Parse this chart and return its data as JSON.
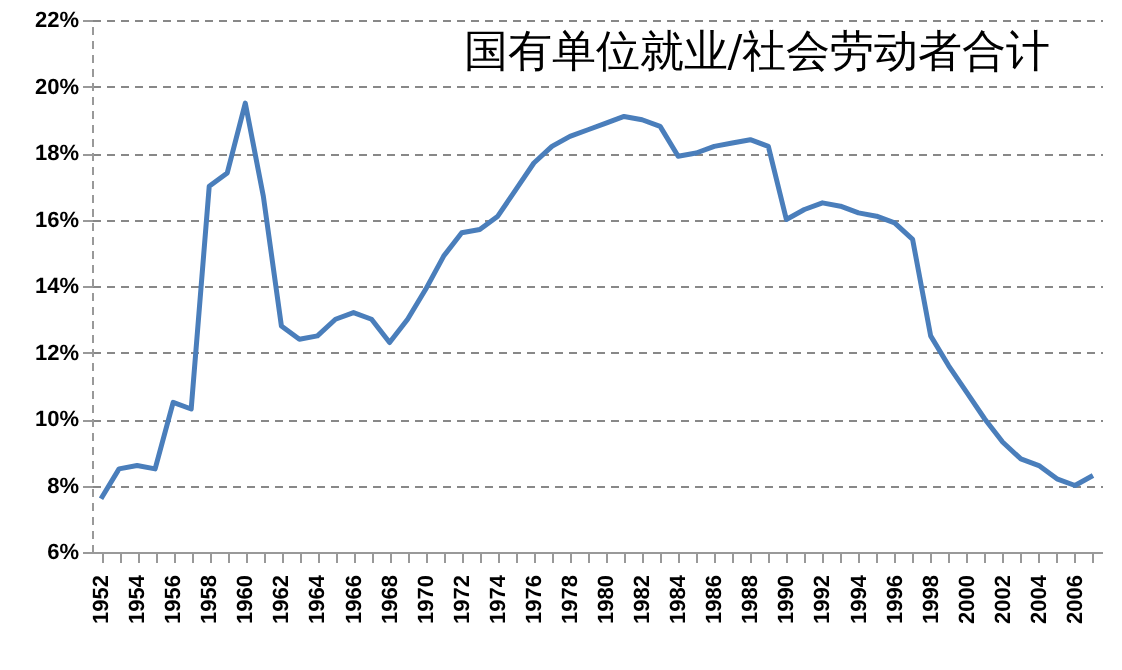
{
  "chart_data": {
    "type": "line",
    "title": "国有单位就业/社会劳动者合计",
    "categories": [
      "1952",
      null,
      "1954",
      null,
      "1956",
      null,
      "1958",
      null,
      "1960",
      null,
      "1962",
      null,
      "1964",
      null,
      "1966",
      null,
      "1968",
      null,
      "1970",
      null,
      "1972",
      null,
      "1974",
      null,
      "1976",
      null,
      "1978",
      null,
      "1980",
      null,
      "1982",
      null,
      "1984",
      null,
      "1986",
      null,
      "1988",
      null,
      "1990",
      null,
      "1992",
      null,
      "1994",
      null,
      "1996",
      null,
      "1998",
      null,
      "2000",
      null,
      "2002",
      null,
      "2004",
      null,
      "2006",
      null
    ],
    "series": [
      {
        "color": "#4a7ebb",
        "values": [
          7.6,
          8.5,
          8.6,
          8.5,
          10.5,
          10.3,
          17.0,
          17.4,
          19.5,
          16.7,
          12.8,
          12.4,
          12.5,
          13.0,
          13.2,
          13.0,
          12.3,
          13.0,
          13.9,
          14.9,
          15.6,
          15.7,
          16.1,
          16.9,
          17.7,
          18.2,
          18.5,
          18.7,
          18.9,
          19.1,
          19.0,
          18.8,
          17.9,
          18.0,
          18.2,
          18.3,
          18.4,
          18.2,
          16.0,
          16.3,
          16.5,
          16.4,
          16.2,
          16.1,
          15.9,
          15.4,
          12.5,
          11.6,
          10.8,
          10.0,
          9.3,
          8.8,
          8.6,
          8.2,
          8.0,
          8.3
        ]
      }
    ],
    "ylim": [
      6,
      22
    ],
    "yticks": [
      {
        "value": 6,
        "label": "6%"
      },
      {
        "value": 8,
        "label": "8%"
      },
      {
        "value": 10,
        "label": "10%"
      },
      {
        "value": 12,
        "label": "12%"
      },
      {
        "value": 14,
        "label": "14%"
      },
      {
        "value": 16,
        "label": "16%"
      },
      {
        "value": 18,
        "label": "18%"
      },
      {
        "value": 20,
        "label": "20%"
      },
      {
        "value": 22,
        "label": "22%"
      }
    ],
    "grid": "y",
    "marker": "none",
    "line_style": "solid"
  }
}
